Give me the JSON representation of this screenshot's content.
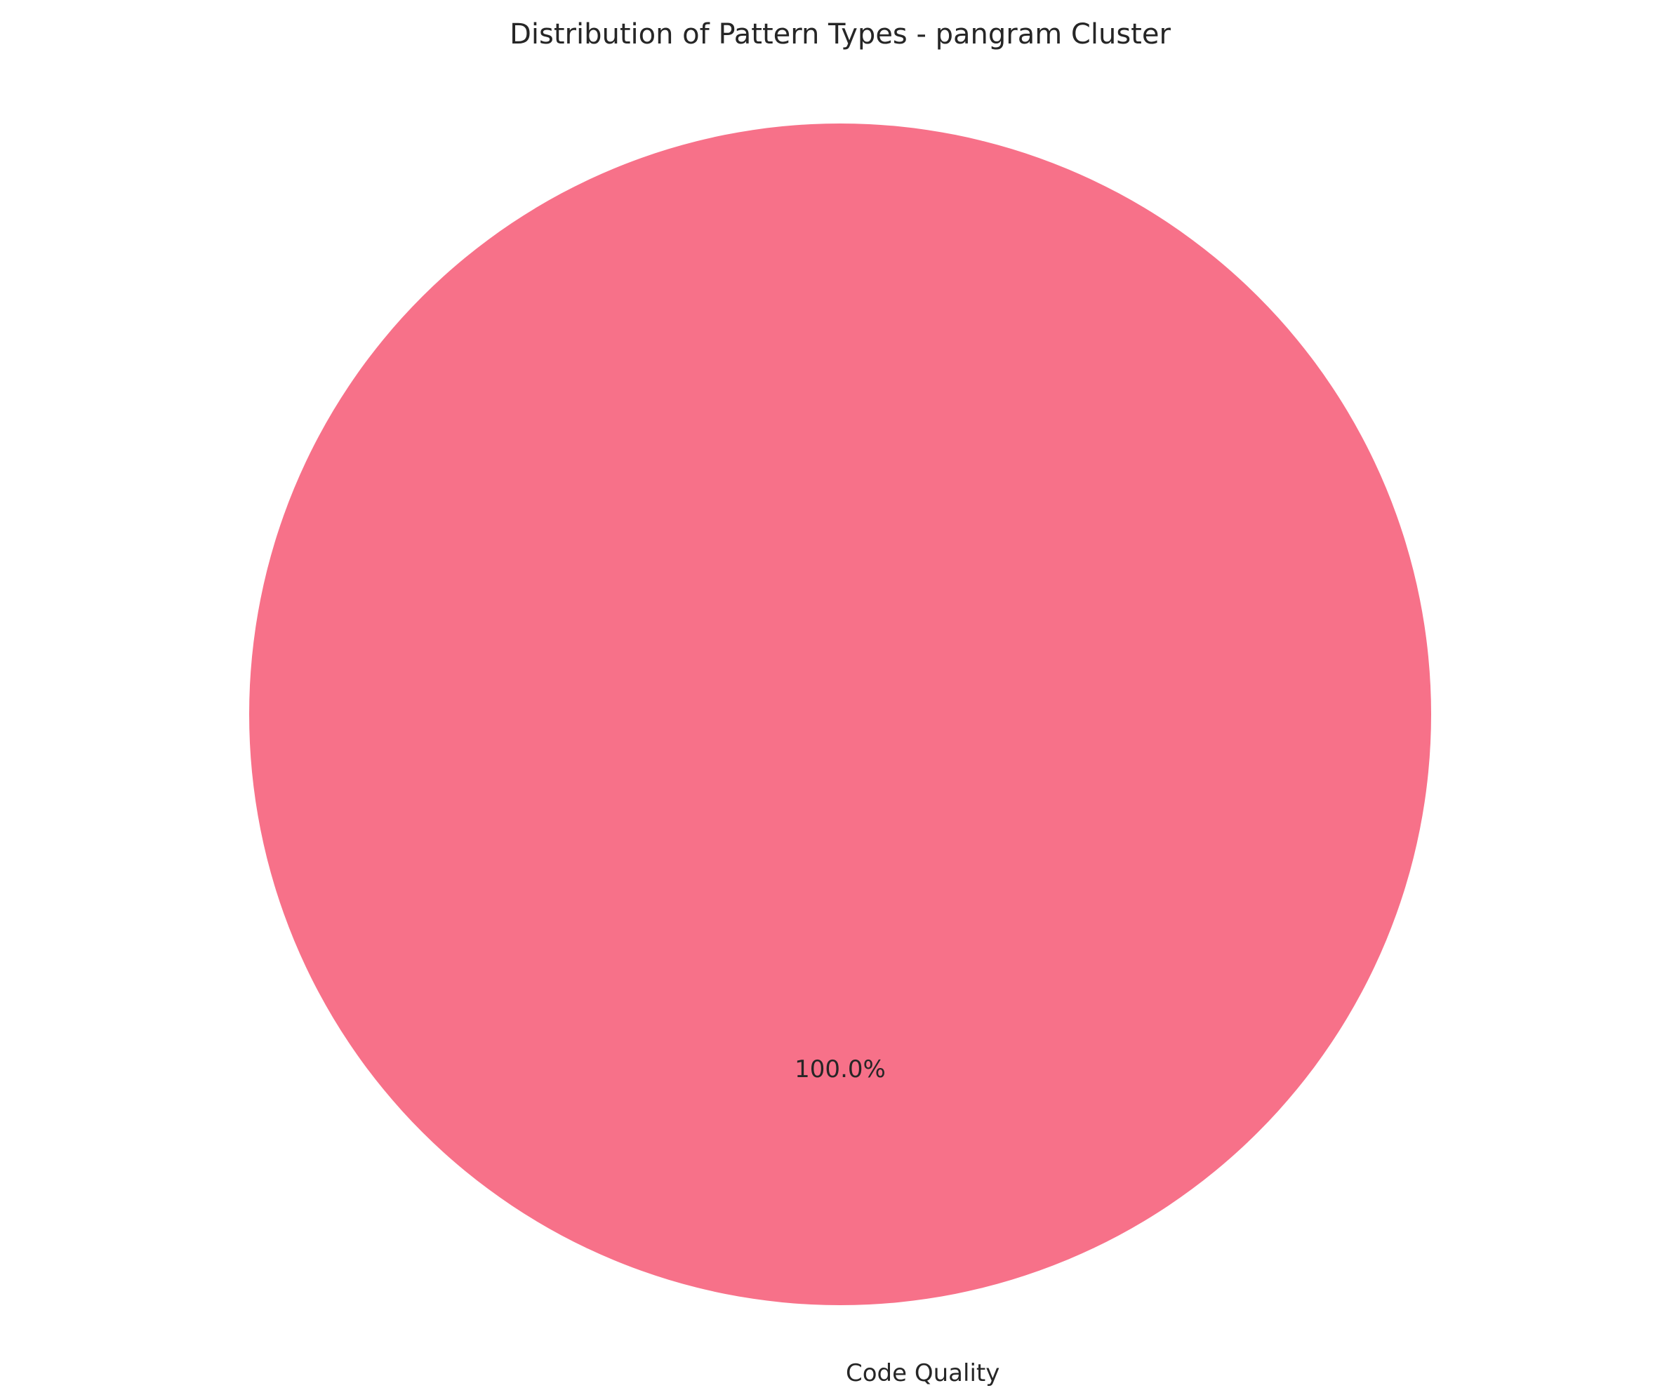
{
  "chart_data": {
    "type": "pie",
    "title": "Distribution of Pattern Types - pangram Cluster",
    "slices": [
      {
        "label": "Code Quality",
        "value": 100.0,
        "percent_label": "100.0%",
        "color": "#f77189"
      }
    ],
    "legend": "none"
  }
}
